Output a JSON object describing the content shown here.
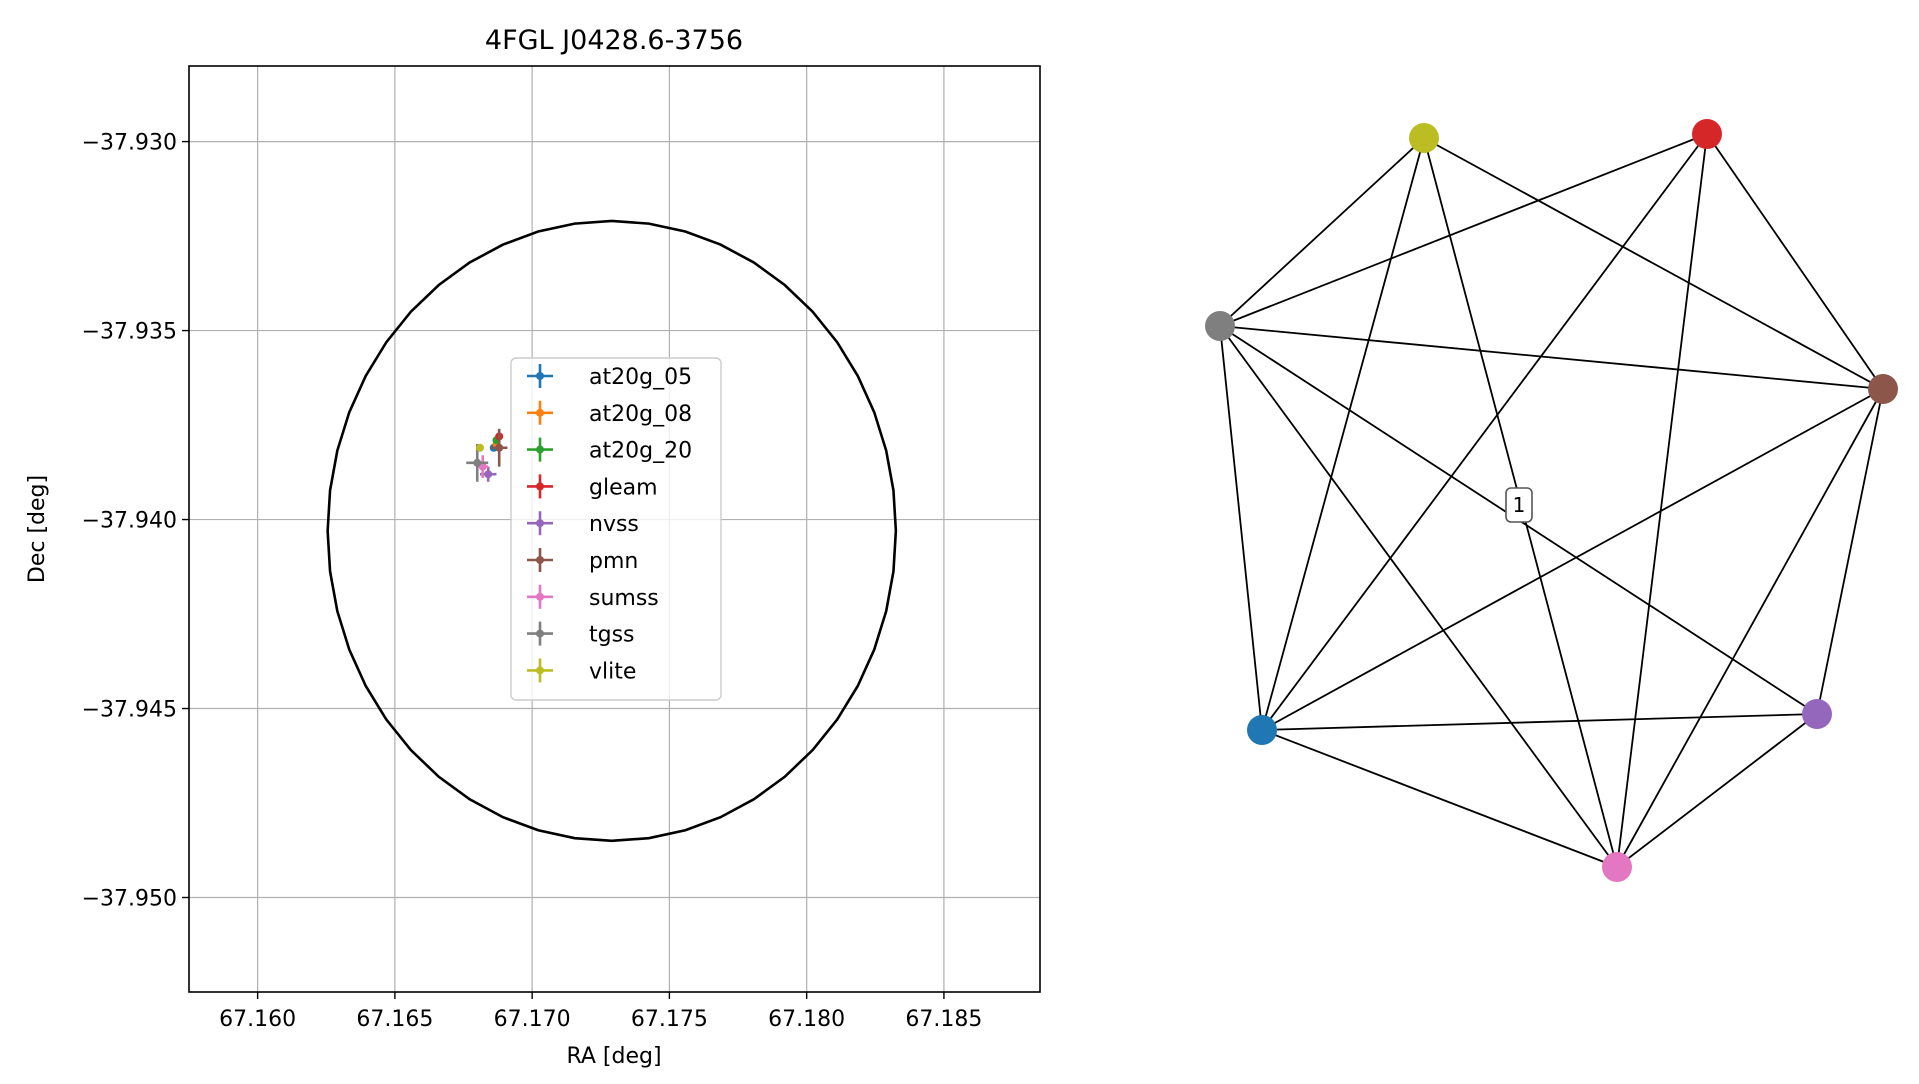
{
  "chart_data": [
    {
      "type": "scatter",
      "title": "4FGL J0428.6-3756",
      "xlabel": "RA [deg]",
      "ylabel": "Dec [deg]",
      "xlim": [
        67.1575,
        67.1885
      ],
      "ylim": [
        -37.9525,
        -37.928
      ],
      "xticks": [
        67.16,
        67.165,
        67.17,
        67.175,
        67.18,
        67.185
      ],
      "xtick_labels": [
        "67.160",
        "67.165",
        "67.170",
        "67.175",
        "67.180",
        "67.185"
      ],
      "yticks": [
        -37.93,
        -37.935,
        -37.94,
        -37.945,
        -37.95
      ],
      "ytick_labels": [
        "−37.930",
        "−37.935",
        "−37.940",
        "−37.945",
        "−37.950"
      ],
      "grid": true,
      "legend_position": "center",
      "ellipse": {
        "center_ra": 67.1729,
        "center_dec": -37.9403,
        "semi_ra": 0.01035,
        "semi_dec": 0.0082,
        "color": "#000000"
      },
      "series": [
        {
          "name": "at20g_05",
          "color": "#1f77b4",
          "ra": 67.1686,
          "dec": -37.9381,
          "ra_err": 0,
          "dec_err": 0
        },
        {
          "name": "at20g_08",
          "color": "#ff7f0e",
          "ra": 67.1687,
          "dec": -37.938,
          "ra_err": 0,
          "dec_err": 0
        },
        {
          "name": "at20g_20",
          "color": "#2ca02c",
          "ra": 67.1687,
          "dec": -37.9379,
          "ra_err": 0,
          "dec_err": 0
        },
        {
          "name": "gleam",
          "color": "#d62728",
          "ra": 67.1688,
          "dec": -37.9378,
          "ra_err": 0.0001,
          "dec_err": 0.00015
        },
        {
          "name": "nvss",
          "color": "#9467bd",
          "ra": 67.1684,
          "dec": -37.9388,
          "ra_err": 0.0003,
          "dec_err": 0.0002
        },
        {
          "name": "pmn",
          "color": "#8c564b",
          "ra": 67.1688,
          "dec": -37.9381,
          "ra_err": 0.0003,
          "dec_err": 0.0005
        },
        {
          "name": "sumss",
          "color": "#e377c2",
          "ra": 67.1682,
          "dec": -37.9386,
          "ra_err": 0.0002,
          "dec_err": 0.0003
        },
        {
          "name": "tgss",
          "color": "#7f7f7f",
          "ra": 67.168,
          "dec": -37.9385,
          "ra_err": 0.0004,
          "dec_err": 0.0005
        },
        {
          "name": "vlite",
          "color": "#bcbd22",
          "ra": 67.1681,
          "dec": -37.9381,
          "ra_err": 0,
          "dec_err": 0
        }
      ]
    },
    {
      "type": "graph",
      "nodes": [
        {
          "id": "vlite",
          "color": "#bcbd22"
        },
        {
          "id": "gleam",
          "color": "#d62728"
        },
        {
          "id": "tgss",
          "color": "#7f7f7f"
        },
        {
          "id": "pmn",
          "color": "#8c564b"
        },
        {
          "id": "nvss",
          "color": "#9467bd"
        },
        {
          "id": "sumss",
          "color": "#e377c2"
        },
        {
          "id": "at20g",
          "color": "#1f77b4"
        }
      ],
      "edges": [
        [
          "vlite",
          "tgss"
        ],
        [
          "vlite",
          "pmn"
        ],
        [
          "vlite",
          "sumss"
        ],
        [
          "vlite",
          "at20g"
        ],
        [
          "gleam",
          "tgss"
        ],
        [
          "gleam",
          "pmn"
        ],
        [
          "gleam",
          "sumss"
        ],
        [
          "gleam",
          "at20g"
        ],
        [
          "tgss",
          "pmn"
        ],
        [
          "tgss",
          "nvss"
        ],
        [
          "tgss",
          "sumss"
        ],
        [
          "tgss",
          "at20g"
        ],
        [
          "pmn",
          "nvss"
        ],
        [
          "pmn",
          "sumss"
        ],
        [
          "pmn",
          "at20g"
        ],
        [
          "nvss",
          "sumss"
        ],
        [
          "nvss",
          "at20g"
        ],
        [
          "sumss",
          "at20g"
        ]
      ],
      "component_label": "1"
    }
  ]
}
